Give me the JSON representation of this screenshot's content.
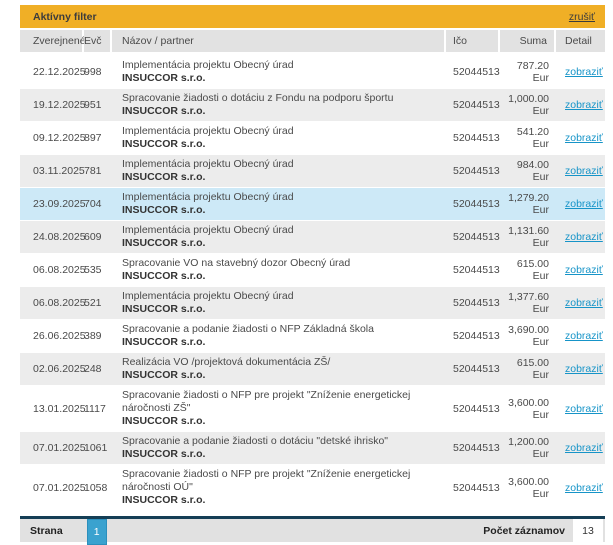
{
  "filter_bar": {
    "label": "Aktívny filter",
    "cancel_label": "zrušiť"
  },
  "table": {
    "columns": [
      "Zverejnené",
      "Evč",
      "Názov / partner",
      "Ičo",
      "Suma",
      "Detail"
    ],
    "detail_label": "zobraziť",
    "rows": [
      {
        "date": "22.12.2025",
        "evc": "998",
        "title": "Implementácia projektu Obecný úrad",
        "partner": "INSUCCOR s.r.o.",
        "ico": "52044513",
        "suma": "787.20 Eur"
      },
      {
        "date": "19.12.2025",
        "evc": "951",
        "title": "Spracovanie žiadosti o dotáciu z Fondu na podporu športu",
        "partner": "INSUCCOR s.r.o.",
        "ico": "52044513",
        "suma": "1,000.00 Eur"
      },
      {
        "date": "09.12.2025",
        "evc": "897",
        "title": "Implementácia projektu Obecný úrad",
        "partner": "INSUCCOR s.r.o.",
        "ico": "52044513",
        "suma": "541.20 Eur"
      },
      {
        "date": "03.11.2025",
        "evc": "781",
        "title": "Implementácia projektu Obecný úrad",
        "partner": "INSUCCOR s.r.o.",
        "ico": "52044513",
        "suma": "984.00 Eur"
      },
      {
        "date": "23.09.2025",
        "evc": "704",
        "title": "Implementácia projektu Obecný úrad",
        "partner": "INSUCCOR s.r.o.",
        "ico": "52044513",
        "suma": "1,279.20 Eur",
        "highlighted": true
      },
      {
        "date": "24.08.2025",
        "evc": "609",
        "title": "Implementácia projektu Obecný úrad",
        "partner": "INSUCCOR s.r.o.",
        "ico": "52044513",
        "suma": "1,131.60 Eur"
      },
      {
        "date": "06.08.2025",
        "evc": "535",
        "title": "Spracovanie VO na stavebný dozor Obecný úrad",
        "partner": "INSUCCOR s.r.o.",
        "ico": "52044513",
        "suma": "615.00 Eur"
      },
      {
        "date": "06.08.2025",
        "evc": "521",
        "title": "Implementácia projektu Obecný úrad",
        "partner": "INSUCCOR s.r.o.",
        "ico": "52044513",
        "suma": "1,377.60 Eur"
      },
      {
        "date": "26.06.2025",
        "evc": "389",
        "title": "Spracovanie a podanie žiadosti o NFP Základná škola",
        "partner": "INSUCCOR s.r.o.",
        "ico": "52044513",
        "suma": "3,690.00 Eur"
      },
      {
        "date": "02.06.2025",
        "evc": "248",
        "title": "Realizácia VO /projektová dokumentácia ZŠ/",
        "partner": "INSUCCOR s.r.o.",
        "ico": "52044513",
        "suma": "615.00 Eur"
      },
      {
        "date": "13.01.2025",
        "evc": "1117",
        "title": "Spracovanie žiadosti o NFP pre projekt \"Zníženie energetickej náročnosti ZŠ\"",
        "partner": "INSUCCOR s.r.o.",
        "ico": "52044513",
        "suma": "3,600.00 Eur"
      },
      {
        "date": "07.01.2025",
        "evc": "1061",
        "title": "Spracovanie a podanie žiadosti o dotáciu \"detské ihrisko\"",
        "partner": "INSUCCOR s.r.o.",
        "ico": "52044513",
        "suma": "1,200.00 Eur"
      },
      {
        "date": "07.01.2025",
        "evc": "1058",
        "title": "Spracovanie žiadosti o NFP pre projekt \"Zníženie energetickej náročnosti OÚ\"",
        "partner": "INSUCCOR s.r.o.",
        "ico": "52044513",
        "suma": "3,600.00 Eur"
      }
    ]
  },
  "footer": {
    "page_label": "Strana",
    "page_number": "1",
    "records_label": "Počet záznamov",
    "records_count": "13"
  },
  "colors": {
    "accent_yellow": "#F0AF26",
    "highlight_blue": "#CDE9F7",
    "link_blue": "#1694C8",
    "navy": "#143E55",
    "pager_blue": "#3AA2CF"
  }
}
